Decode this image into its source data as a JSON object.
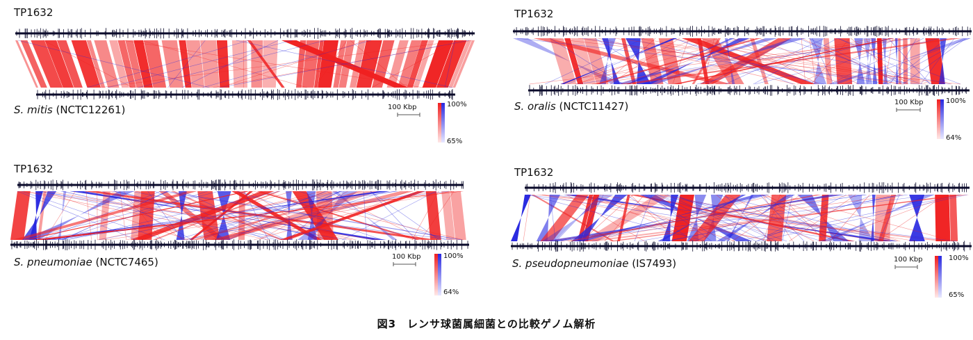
{
  "panels": [
    {
      "reference": "TP1632",
      "species_italic": "S. mitis",
      "strain": "(NCTC12261)",
      "scale_label": "100 Kbp",
      "identity_max": "100%",
      "identity_min": "65%"
    },
    {
      "reference": "TP1632",
      "species_italic": "S. oralis",
      "strain": "(NCTC11427)",
      "scale_label": "100 Kbp",
      "identity_max": "100%",
      "identity_min": "64%"
    },
    {
      "reference": "TP1632",
      "species_italic": "S. pneumoniae",
      "strain": "(NCTC7465)",
      "scale_label": "100 Kbp",
      "identity_max": "100%",
      "identity_min": "64%"
    },
    {
      "reference": "TP1632",
      "species_italic": "S.  pseudopneumoniae",
      "strain": "(IS7493)",
      "scale_label": "100 Kbp",
      "identity_max": "100%",
      "identity_min": "65%"
    }
  ],
  "caption": "図3　レンサ球菌属細菌との比較ゲノム解析",
  "colors": {
    "forward_match": "#f02020",
    "reverse_match": "#2828e0",
    "track": "#0a0a2a"
  }
}
